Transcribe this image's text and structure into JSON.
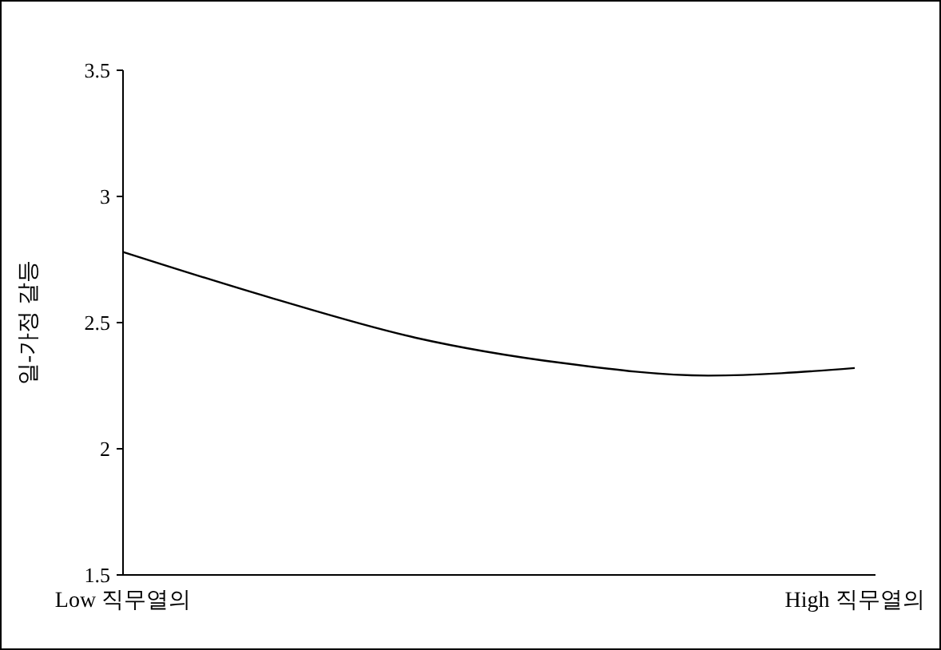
{
  "chart_data": {
    "type": "line",
    "ylabel": "일-가정 갈등",
    "categories": [
      "Low 직무열의",
      null,
      null,
      null,
      null,
      "High 직무열의"
    ],
    "series": [
      {
        "color": "#000000",
        "values": [
          2.78,
          2.6,
          2.44,
          2.34,
          2.29,
          2.32
        ]
      }
    ],
    "ylim": [
      1.5,
      3.5
    ],
    "yticks": [
      1.5,
      2,
      2.5,
      3,
      3.5
    ],
    "grid": false,
    "marker": "none",
    "line_style": "solid"
  }
}
